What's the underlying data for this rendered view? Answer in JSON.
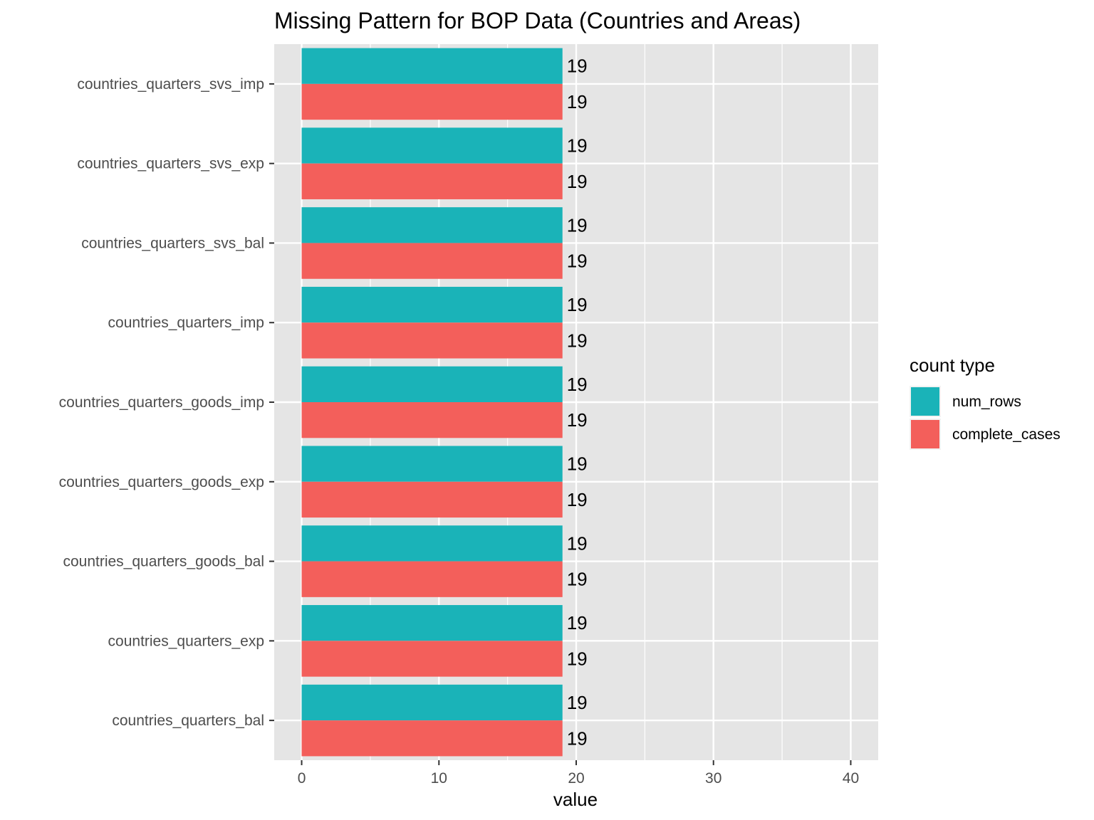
{
  "chart_data": {
    "type": "bar",
    "orientation": "horizontal",
    "title": "Missing Pattern for BOP Data (Countries and Areas)",
    "xlabel": "value",
    "ylabel": "",
    "xlim": [
      -2,
      42
    ],
    "xticks": [
      0,
      10,
      20,
      30,
      40
    ],
    "grid": true,
    "legend": {
      "title": "count type",
      "position": "right"
    },
    "categories": [
      "countries_quarters_svs_imp",
      "countries_quarters_svs_exp",
      "countries_quarters_svs_bal",
      "countries_quarters_imp",
      "countries_quarters_goods_imp",
      "countries_quarters_goods_exp",
      "countries_quarters_goods_bal",
      "countries_quarters_exp",
      "countries_quarters_bal"
    ],
    "series": [
      {
        "name": "num_rows",
        "color": "#1ab3b8",
        "values": [
          19,
          19,
          19,
          19,
          19,
          19,
          19,
          19,
          19
        ]
      },
      {
        "name": "complete_cases",
        "color": "#f35f5b",
        "values": [
          19,
          19,
          19,
          19,
          19,
          19,
          19,
          19,
          19
        ]
      }
    ],
    "colors": {
      "panel": "#e5e5e5",
      "grid": "#ffffff",
      "tick": "#333333"
    }
  }
}
